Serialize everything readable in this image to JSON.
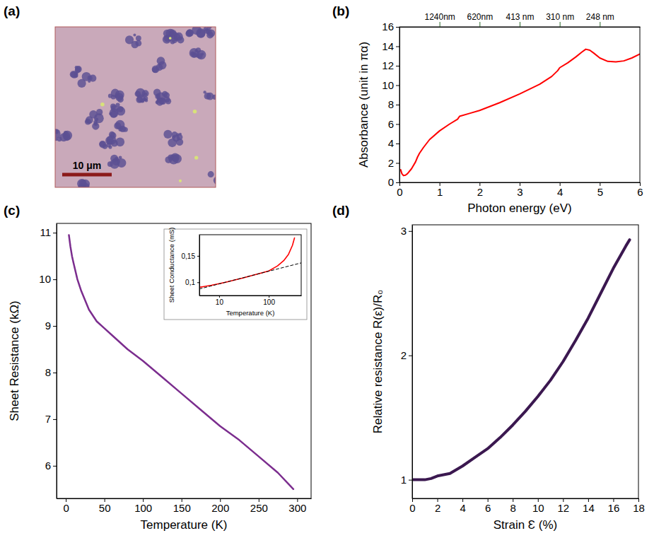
{
  "chart_data": [
    {
      "type": "image",
      "title": "(a)",
      "annotations": [
        "10 μm"
      ]
    },
    {
      "type": "line",
      "title": "(b)",
      "xlabel": "Photon energy (eV)",
      "ylabel": "Absorbance (unit in πα)",
      "x": [
        0.03,
        0.06,
        0.1,
        0.15,
        0.2,
        0.3,
        0.4,
        0.45,
        0.5,
        0.6,
        0.75,
        1.0,
        1.25,
        1.45,
        1.5,
        1.75,
        2.0,
        2.5,
        3.0,
        3.5,
        3.8,
        3.95,
        4.0,
        4.2,
        4.4,
        4.55,
        4.65,
        4.75,
        4.85,
        5.0,
        5.2,
        5.4,
        5.6,
        5.8,
        6.0
      ],
      "series": [
        {
          "color": "#ff0000",
          "values": [
            1.3,
            0.9,
            0.7,
            0.75,
            0.9,
            1.4,
            2.1,
            2.6,
            3.0,
            3.6,
            4.4,
            5.3,
            6.0,
            6.5,
            6.8,
            7.1,
            7.4,
            8.2,
            9.1,
            10.1,
            10.9,
            11.5,
            11.8,
            12.3,
            12.9,
            13.4,
            13.7,
            13.6,
            13.3,
            12.8,
            12.45,
            12.4,
            12.5,
            12.8,
            13.2
          ]
        }
      ],
      "xlim": [
        0,
        6
      ],
      "xticks": [
        0,
        1,
        2,
        3,
        4,
        5,
        6
      ],
      "ylim": [
        0,
        16
      ],
      "yticks": [
        0,
        2,
        4,
        6,
        8,
        10,
        12,
        14,
        16
      ],
      "x2lim": [
        0,
        6
      ],
      "x2ticks": [
        {
          "value": 1,
          "label": "1240nm"
        },
        {
          "value": 2,
          "label": "620nm"
        },
        {
          "value": 3,
          "label": "413 nm"
        },
        {
          "value": 4,
          "label": "310 nm"
        },
        {
          "value": 5,
          "label": "248 nm"
        }
      ]
    },
    {
      "type": "line",
      "title": "(c)",
      "xlabel": "Temperature (K)",
      "ylabel": "Sheet Resistance (kΩ)",
      "x": [
        4,
        6,
        8,
        10,
        15,
        20,
        30,
        40,
        50,
        60,
        80,
        100,
        125,
        150,
        175,
        200,
        225,
        250,
        275,
        295
      ],
      "series": [
        {
          "color": "#7b2d8e",
          "values": [
            10.95,
            10.7,
            10.5,
            10.35,
            10.0,
            9.75,
            9.35,
            9.1,
            8.95,
            8.8,
            8.5,
            8.25,
            7.9,
            7.55,
            7.2,
            6.85,
            6.55,
            6.2,
            5.85,
            5.5
          ]
        }
      ],
      "xlim": [
        -12,
        318
      ],
      "xticks": [
        0,
        50,
        100,
        150,
        200,
        250,
        300
      ],
      "ylim": [
        5.3,
        11.2
      ],
      "yticks": [
        6,
        7,
        8,
        9,
        10,
        11
      ]
    },
    {
      "type": "line",
      "xlabel": "Temperature (K)",
      "ylabel": "Sheet Conductance (mS)",
      "log": "x",
      "series": [
        {
          "color": "#ff0000",
          "line_style": "solid",
          "x": [
            4,
            5,
            7,
            10,
            15,
            20,
            30,
            50,
            70,
            100,
            150,
            200,
            250,
            300,
            330
          ],
          "values": [
            0.0905,
            0.092,
            0.0945,
            0.0975,
            0.101,
            0.104,
            0.108,
            0.1137,
            0.1175,
            0.1215,
            0.131,
            0.141,
            0.153,
            0.17,
            0.184
          ]
        },
        {
          "color": "#000000",
          "line_style": "dashed",
          "x": [
            4,
            450
          ],
          "values": [
            0.0874,
            0.1367
          ]
        }
      ],
      "xlim": [
        4,
        450
      ],
      "xticks": [
        10,
        100
      ],
      "ylim": [
        0.075,
        0.19
      ],
      "yticks": [
        {
          "value": 0.1,
          "label": "0,1"
        },
        {
          "value": 0.15,
          "label": "0,15"
        }
      ]
    },
    {
      "type": "line",
      "title": "(d)",
      "xlabel": "Strain Ɛ (%)",
      "ylabel": "Relative resistance R(ε)/R₀",
      "x": [
        0,
        0.5,
        1,
        1.5,
        2,
        2.5,
        3,
        3.5,
        4,
        5,
        6,
        7,
        8,
        9,
        10,
        11,
        12,
        13,
        14,
        15,
        16,
        17,
        17.3
      ],
      "series": [
        {
          "color": "#3b1850",
          "values": [
            1.0,
            1.0,
            1.0,
            1.01,
            1.03,
            1.04,
            1.05,
            1.08,
            1.11,
            1.18,
            1.25,
            1.34,
            1.44,
            1.55,
            1.67,
            1.8,
            1.95,
            2.12,
            2.3,
            2.5,
            2.7,
            2.88,
            2.93
          ]
        }
      ],
      "xlim": [
        0,
        18
      ],
      "xticks": [
        0,
        2,
        4,
        6,
        8,
        10,
        12,
        14,
        16,
        18
      ],
      "ylim": [
        0.85,
        3.05
      ],
      "yticks": [
        1,
        2,
        3
      ]
    }
  ]
}
